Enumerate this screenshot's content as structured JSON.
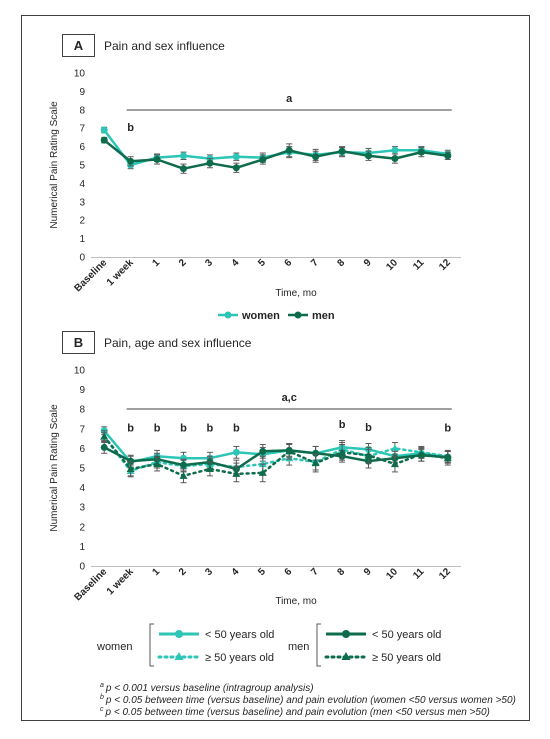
{
  "colors": {
    "women": "#2cc5b6",
    "men": "#0e6b4c",
    "error_bar": "#595959",
    "frame": "#404040",
    "sig_line": "#404040"
  },
  "footnotes": [
    {
      "sup": "a",
      "text": "p < 0.001 versus baseline (intragroup analysis)"
    },
    {
      "sup": "b",
      "text": "p < 0.05 between time (versus baseline) and pain evolution (women <50 versus women >50)"
    },
    {
      "sup": "c",
      "text": "p < 0.05 between time (versus baseline) and pain evolution (men <50 versus men >50)"
    }
  ],
  "chart_data": [
    {
      "panel": "A",
      "type": "line",
      "title": "Pain and sex influence",
      "xlabel": "Time, mo",
      "ylabel": "Numerical Pain Rating Scale",
      "ylim": [
        0,
        10
      ],
      "yticks": [
        "0",
        "1",
        "2",
        "3",
        "4",
        "5",
        "6",
        "7",
        "8",
        "9",
        "10"
      ],
      "categories": [
        "Baseline",
        "1 week",
        "1",
        "2",
        "3",
        "4",
        "5",
        "6",
        "7",
        "8",
        "9",
        "10",
        "11",
        "12"
      ],
      "legend_position": "bottom",
      "significance_bar_label": "a",
      "point_labels": [
        {
          "category": "1 week",
          "label": "b"
        }
      ],
      "series": [
        {
          "name": "women",
          "color": "#2cc5b6",
          "style": "solid",
          "marker": "circle",
          "values": [
            6.9,
            5.0,
            5.4,
            5.5,
            5.35,
            5.45,
            5.4,
            5.7,
            5.55,
            5.7,
            5.65,
            5.8,
            5.8,
            5.6
          ],
          "error": [
            0.15,
            0.2,
            0.2,
            0.2,
            0.2,
            0.2,
            0.25,
            0.3,
            0.3,
            0.25,
            0.25,
            0.2,
            0.2,
            0.2
          ]
        },
        {
          "name": "men",
          "color": "#0e6b4c",
          "style": "solid",
          "marker": "circle",
          "values": [
            6.35,
            5.2,
            5.3,
            4.8,
            5.1,
            4.85,
            5.3,
            5.8,
            5.45,
            5.75,
            5.5,
            5.35,
            5.7,
            5.5
          ],
          "error": [
            0.15,
            0.25,
            0.25,
            0.25,
            0.25,
            0.25,
            0.25,
            0.35,
            0.3,
            0.25,
            0.25,
            0.25,
            0.25,
            0.2
          ]
        }
      ]
    },
    {
      "panel": "B",
      "type": "line",
      "title": "Pain, age and sex influence",
      "xlabel": "Time, mo",
      "ylabel": "Numerical Pain Rating Scale",
      "ylim": [
        0,
        10
      ],
      "yticks": [
        "0",
        "1",
        "2",
        "3",
        "4",
        "5",
        "6",
        "7",
        "8",
        "9",
        "10"
      ],
      "categories": [
        "Baseline",
        "1 week",
        "1",
        "2",
        "3",
        "4",
        "5",
        "6",
        "7",
        "8",
        "9",
        "10",
        "11",
        "12"
      ],
      "legend_position": "bottom",
      "significance_bar_label": "a,c",
      "point_labels": [
        {
          "category": "1 week",
          "label": "b"
        },
        {
          "category": "1",
          "label": "b"
        },
        {
          "category": "2",
          "label": "b"
        },
        {
          "category": "3",
          "label": "b"
        },
        {
          "category": "4",
          "label": "b"
        },
        {
          "category": "8",
          "label": "b"
        },
        {
          "category": "9",
          "label": "b"
        },
        {
          "category": "12",
          "label": "b"
        }
      ],
      "legend_groups": [
        {
          "label": "women",
          "entries": [
            {
              "text": "< 50 years old",
              "series": 0
            },
            {
              "text": "≥ 50 years old",
              "series": 1
            }
          ]
        },
        {
          "label": "men",
          "entries": [
            {
              "text": "< 50 years old",
              "series": 2
            },
            {
              "text": "≥ 50 years old",
              "series": 3
            }
          ]
        }
      ],
      "series": [
        {
          "group": "women",
          "age": "< 50 years old",
          "color": "#2cc5b6",
          "style": "solid",
          "marker": "circle",
          "values": [
            6.9,
            5.3,
            5.6,
            5.5,
            5.5,
            5.8,
            5.7,
            5.9,
            5.75,
            6.05,
            5.95,
            5.6,
            5.75,
            5.55
          ],
          "error": [
            0.2,
            0.3,
            0.3,
            0.3,
            0.3,
            0.3,
            0.35,
            0.3,
            0.35,
            0.35,
            0.3,
            0.3,
            0.25,
            0.3
          ]
        },
        {
          "group": "women",
          "age": "≥ 50 years old",
          "color": "#2cc5b6",
          "style": "dotted",
          "marker": "triangle",
          "values": [
            6.6,
            4.85,
            5.3,
            5.1,
            5.2,
            5.05,
            5.2,
            5.5,
            5.3,
            5.95,
            5.6,
            6.0,
            5.8,
            5.6
          ],
          "error": [
            0.2,
            0.3,
            0.3,
            0.3,
            0.3,
            0.35,
            0.4,
            0.35,
            0.4,
            0.35,
            0.35,
            0.3,
            0.3,
            0.3
          ]
        },
        {
          "group": "men",
          "age": "< 50 years old",
          "color": "#0e6b4c",
          "style": "solid",
          "marker": "circle",
          "values": [
            6.05,
            5.35,
            5.45,
            5.15,
            5.3,
            4.95,
            5.85,
            5.9,
            5.75,
            5.6,
            5.35,
            5.5,
            5.65,
            5.55
          ],
          "error": [
            0.3,
            0.3,
            0.3,
            0.3,
            0.3,
            0.3,
            0.35,
            0.35,
            0.35,
            0.3,
            0.35,
            0.35,
            0.3,
            0.3
          ]
        },
        {
          "group": "men",
          "age": "≥ 50 years old",
          "color": "#0e6b4c",
          "style": "dotted",
          "marker": "triangle",
          "values": [
            6.6,
            4.95,
            5.2,
            4.6,
            4.95,
            4.7,
            4.75,
            5.85,
            5.25,
            5.8,
            5.65,
            5.2,
            5.7,
            5.5
          ],
          "error": [
            0.3,
            0.35,
            0.35,
            0.35,
            0.35,
            0.4,
            0.45,
            0.4,
            0.45,
            0.4,
            0.4,
            0.4,
            0.35,
            0.35
          ]
        }
      ]
    }
  ]
}
